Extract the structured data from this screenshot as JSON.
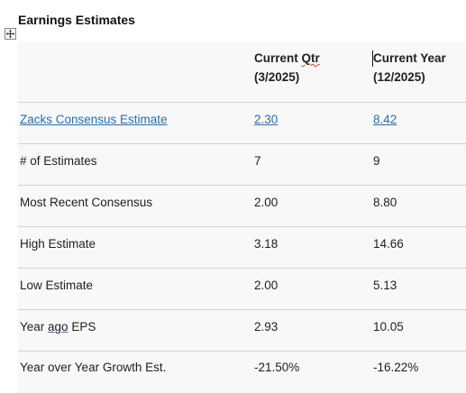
{
  "title": "Earnings Estimates",
  "header": {
    "col2_line1_prefix": "Current ",
    "col2_line1_squiggle": "Qtr",
    "col2_line2": "(3/2025)",
    "col3_line1": "Current Year",
    "col3_line2": "(12/2025)"
  },
  "rows": [
    {
      "label": "Zacks Consensus Estimate",
      "qtr": "2.30",
      "year": "8.42"
    },
    {
      "label": "# of Estimates",
      "qtr": "7",
      "year": "9"
    },
    {
      "label": "Most Recent Consensus",
      "qtr": "2.00",
      "year": "8.80"
    },
    {
      "label": "High Estimate",
      "qtr": "3.18",
      "year": "14.66"
    },
    {
      "label": "Low Estimate",
      "qtr": "2.00",
      "year": "5.13"
    },
    {
      "label_prefix": "Year ",
      "label_underlined": "ago",
      "label_suffix": " EPS",
      "qtr": "2.93",
      "year": "10.05"
    },
    {
      "label": "Year over Year Growth Est.",
      "qtr": "-21.50%",
      "year": "-16.22%"
    }
  ],
  "colors": {
    "link": "#2b6ea4",
    "row_background": "#f8f8f8",
    "divider": "#d2d2d2"
  },
  "icons": {
    "table_move_handle": "move-arrows-icon"
  }
}
